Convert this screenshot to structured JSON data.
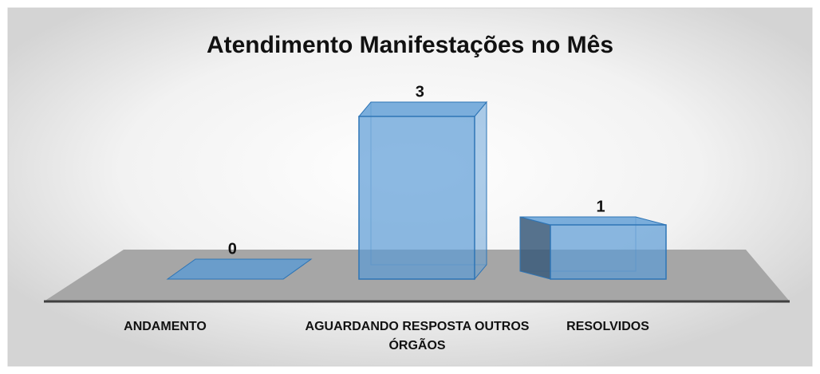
{
  "chart_data": {
    "type": "bar3d",
    "title": "Atendimento Manifestações no Mês",
    "categories": [
      "ANDAMENTO",
      "AGUARDANDO RESPOSTA OUTROS ÓRGÃOS",
      "RESOLVIDOS"
    ],
    "values": [
      0,
      3,
      1
    ],
    "color": "#5b9bd5"
  }
}
